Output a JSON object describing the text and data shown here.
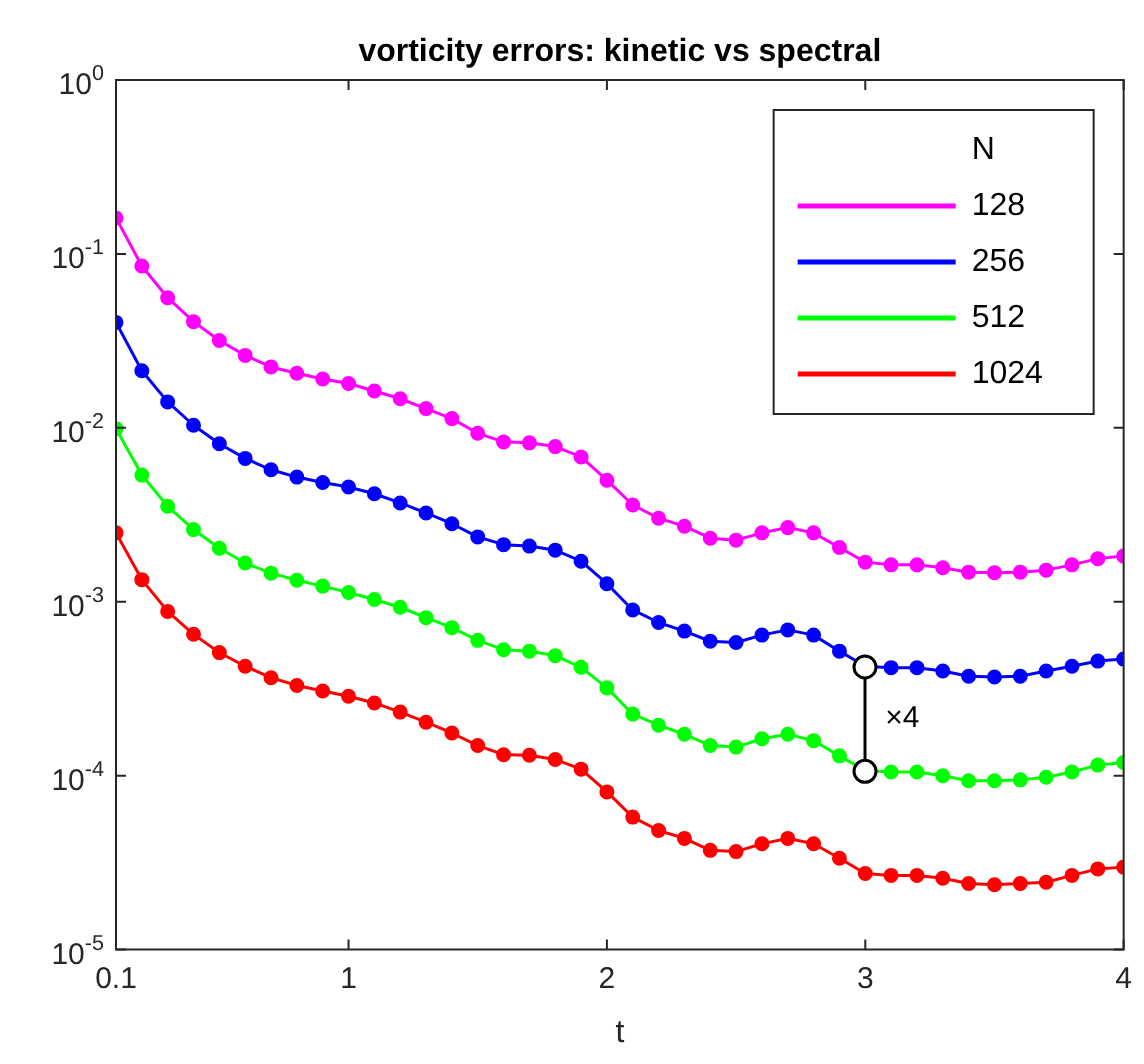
{
  "chart_data": {
    "type": "line",
    "title": "vorticity errors: kinetic vs spectral",
    "xlabel": "t",
    "legend_title": "N",
    "legend": "top right",
    "marker": "circle",
    "line_style": "solid",
    "log": "y",
    "grid": false,
    "x": [
      0.1,
      0.2,
      0.3,
      0.4,
      0.5,
      0.6,
      0.7,
      0.8,
      0.9,
      1.0,
      1.1,
      1.2,
      1.3,
      1.4,
      1.5,
      1.6,
      1.7,
      1.8,
      1.9,
      2.0,
      2.1,
      2.2,
      2.3,
      2.4,
      2.5,
      2.6,
      2.7,
      2.8,
      2.9,
      3.0,
      3.1,
      3.2,
      3.3,
      3.4,
      3.5,
      3.6,
      3.7,
      3.8,
      3.9,
      4.0
    ],
    "xlim": [
      0.1,
      4
    ],
    "xticks": [
      0.1,
      1,
      2,
      3,
      4
    ],
    "ylim": [
      1e-05,
      1
    ],
    "yticks": [
      {
        "value": 1e-05,
        "label": "10$^{-5}$"
      },
      {
        "value": 0.0001,
        "label": "10$^{-4}$"
      },
      {
        "value": 0.001,
        "label": "10$^{-3}$"
      },
      {
        "value": 0.01,
        "label": "10$^{-2}$"
      },
      {
        "value": 0.1,
        "label": "10$^{-1}$"
      },
      {
        "value": 1,
        "label": "10$^{0}$"
      }
    ],
    "series": [
      {
        "name": "128",
        "color": "#ff00ff",
        "values": [
          0.161,
          0.0853,
          0.056,
          0.0408,
          0.0318,
          0.0261,
          0.0224,
          0.0206,
          0.0191,
          0.018,
          0.0163,
          0.0147,
          0.0129,
          0.0113,
          0.0093,
          0.0083,
          0.0082,
          0.0078,
          0.0068,
          0.005,
          0.0036,
          0.00302,
          0.00272,
          0.00232,
          0.00226,
          0.00249,
          0.00267,
          0.00249,
          0.00205,
          0.00169,
          0.00163,
          0.00163,
          0.00157,
          0.00148,
          0.00147,
          0.00148,
          0.00152,
          0.00163,
          0.00177,
          0.00183
        ]
      },
      {
        "name": "256",
        "color": "#0000ff",
        "values": [
          0.0404,
          0.0213,
          0.0141,
          0.01035,
          0.0081,
          0.00667,
          0.00574,
          0.00521,
          0.00485,
          0.00457,
          0.00418,
          0.0037,
          0.00324,
          0.00281,
          0.00236,
          0.00213,
          0.00209,
          0.00198,
          0.00171,
          0.00127,
          0.000897,
          0.00076,
          0.000678,
          0.000593,
          0.000583,
          0.000643,
          0.000689,
          0.000643,
          0.00052,
          0.000426,
          0.000418,
          0.000418,
          0.0004,
          0.000373,
          0.000369,
          0.000373,
          0.0004,
          0.000426,
          0.000456,
          0.000468
        ]
      },
      {
        "name": "512",
        "color": "#00ff00",
        "values": [
          0.00989,
          0.00535,
          0.00354,
          0.0026,
          0.00203,
          0.00167,
          0.00146,
          0.00133,
          0.00123,
          0.00113,
          0.00103,
          0.00093,
          0.00081,
          0.00071,
          0.0006,
          0.00053,
          0.00052,
          0.00049,
          0.00042,
          0.00032,
          0.000226,
          0.000195,
          0.000173,
          0.000149,
          0.000146,
          0.000163,
          0.000173,
          0.000159,
          0.00013,
          0.000107,
          0.000105,
          0.000105,
          0.0001,
          9.35e-05,
          9.35e-05,
          9.46e-05,
          9.8e-05,
          0.000105,
          0.000115,
          0.000119
        ]
      },
      {
        "name": "1024",
        "color": "#ff0000",
        "values": [
          0.00249,
          0.00134,
          0.00088,
          0.00065,
          0.00051,
          0.000426,
          0.000366,
          0.00033,
          0.000307,
          0.000286,
          0.000262,
          0.000232,
          0.000203,
          0.000176,
          0.000149,
          0.000132,
          0.000131,
          0.000124,
          0.000109,
          8.07e-05,
          5.78e-05,
          4.84e-05,
          4.36e-05,
          3.72e-05,
          3.66e-05,
          4.06e-05,
          4.36e-05,
          4.06e-05,
          3.35e-05,
          2.74e-05,
          2.67e-05,
          2.67e-05,
          2.57e-05,
          2.4e-05,
          2.36e-05,
          2.4e-05,
          2.44e-05,
          2.67e-05,
          2.91e-05,
          2.98e-05
        ]
      }
    ],
    "annotations": [
      {
        "text": "×4",
        "x": 3,
        "y": 0.000426
      }
    ]
  }
}
